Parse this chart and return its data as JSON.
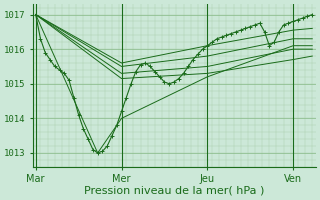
{
  "background_color": "#cce8d8",
  "plot_bg_color": "#cce8d8",
  "line_color": "#1a6b1a",
  "marker": "+",
  "marker_size": 3,
  "grid_minor_color": "#aaccaa",
  "grid_major_color": "#88bb88",
  "tick_label_color": "#1a6b1a",
  "xlabel": "Pression niveau de la mer( hPa )",
  "xlabel_color": "#1a6b1a",
  "xlabel_fontsize": 8,
  "ytick_labels": [
    "1013",
    "1014",
    "1015",
    "1016",
    "1017"
  ],
  "ytick_values": [
    1013,
    1014,
    1015,
    1016,
    1017
  ],
  "ylim": [
    1012.6,
    1017.3
  ],
  "xtick_labels": [
    "Mar",
    "Mer",
    "Jeu",
    "Ven"
  ],
  "xtick_positions": [
    0,
    72,
    144,
    216
  ],
  "xlim": [
    -2,
    235
  ],
  "vline_positions": [
    0,
    72,
    144,
    216
  ],
  "main_series": [
    [
      0,
      1017.0
    ],
    [
      4,
      1016.3
    ],
    [
      8,
      1015.9
    ],
    [
      12,
      1015.7
    ],
    [
      16,
      1015.5
    ],
    [
      20,
      1015.4
    ],
    [
      24,
      1015.3
    ],
    [
      28,
      1015.1
    ],
    [
      32,
      1014.6
    ],
    [
      36,
      1014.1
    ],
    [
      40,
      1013.7
    ],
    [
      44,
      1013.4
    ],
    [
      48,
      1013.1
    ],
    [
      52,
      1013.0
    ],
    [
      56,
      1013.05
    ],
    [
      60,
      1013.2
    ],
    [
      64,
      1013.5
    ],
    [
      68,
      1013.8
    ],
    [
      72,
      1014.2
    ],
    [
      76,
      1014.6
    ],
    [
      80,
      1015.0
    ],
    [
      84,
      1015.35
    ],
    [
      88,
      1015.55
    ],
    [
      92,
      1015.6
    ],
    [
      96,
      1015.5
    ],
    [
      100,
      1015.35
    ],
    [
      104,
      1015.2
    ],
    [
      108,
      1015.05
    ],
    [
      112,
      1015.0
    ],
    [
      116,
      1015.05
    ],
    [
      120,
      1015.15
    ],
    [
      124,
      1015.3
    ],
    [
      128,
      1015.5
    ],
    [
      132,
      1015.7
    ],
    [
      136,
      1015.85
    ],
    [
      140,
      1016.0
    ],
    [
      144,
      1016.1
    ],
    [
      148,
      1016.2
    ],
    [
      152,
      1016.3
    ],
    [
      156,
      1016.35
    ],
    [
      160,
      1016.4
    ],
    [
      164,
      1016.45
    ],
    [
      168,
      1016.5
    ],
    [
      172,
      1016.55
    ],
    [
      176,
      1016.6
    ],
    [
      180,
      1016.65
    ],
    [
      184,
      1016.7
    ],
    [
      188,
      1016.75
    ],
    [
      192,
      1016.5
    ],
    [
      196,
      1016.1
    ],
    [
      200,
      1016.2
    ],
    [
      204,
      1016.5
    ],
    [
      208,
      1016.7
    ],
    [
      212,
      1016.75
    ],
    [
      216,
      1016.8
    ],
    [
      220,
      1016.85
    ],
    [
      224,
      1016.9
    ],
    [
      228,
      1016.95
    ],
    [
      232,
      1017.0
    ]
  ],
  "envelope_series": [
    [
      [
        0,
        1017.0
      ],
      [
        72,
        1015.5
      ],
      [
        144,
        1015.8
      ],
      [
        216,
        1016.3
      ],
      [
        232,
        1016.3
      ]
    ],
    [
      [
        0,
        1017.0
      ],
      [
        72,
        1015.3
      ],
      [
        144,
        1015.5
      ],
      [
        216,
        1016.0
      ],
      [
        232,
        1016.0
      ]
    ],
    [
      [
        0,
        1017.0
      ],
      [
        72,
        1015.15
      ],
      [
        144,
        1015.3
      ],
      [
        216,
        1015.7
      ],
      [
        232,
        1015.8
      ]
    ],
    [
      [
        0,
        1017.0
      ],
      [
        72,
        1015.6
      ],
      [
        144,
        1016.1
      ],
      [
        216,
        1016.55
      ],
      [
        232,
        1016.6
      ]
    ],
    [
      [
        0,
        1017.0
      ],
      [
        52,
        1013.0
      ],
      [
        72,
        1014.0
      ],
      [
        144,
        1015.2
      ],
      [
        216,
        1016.1
      ],
      [
        232,
        1016.1
      ]
    ]
  ]
}
